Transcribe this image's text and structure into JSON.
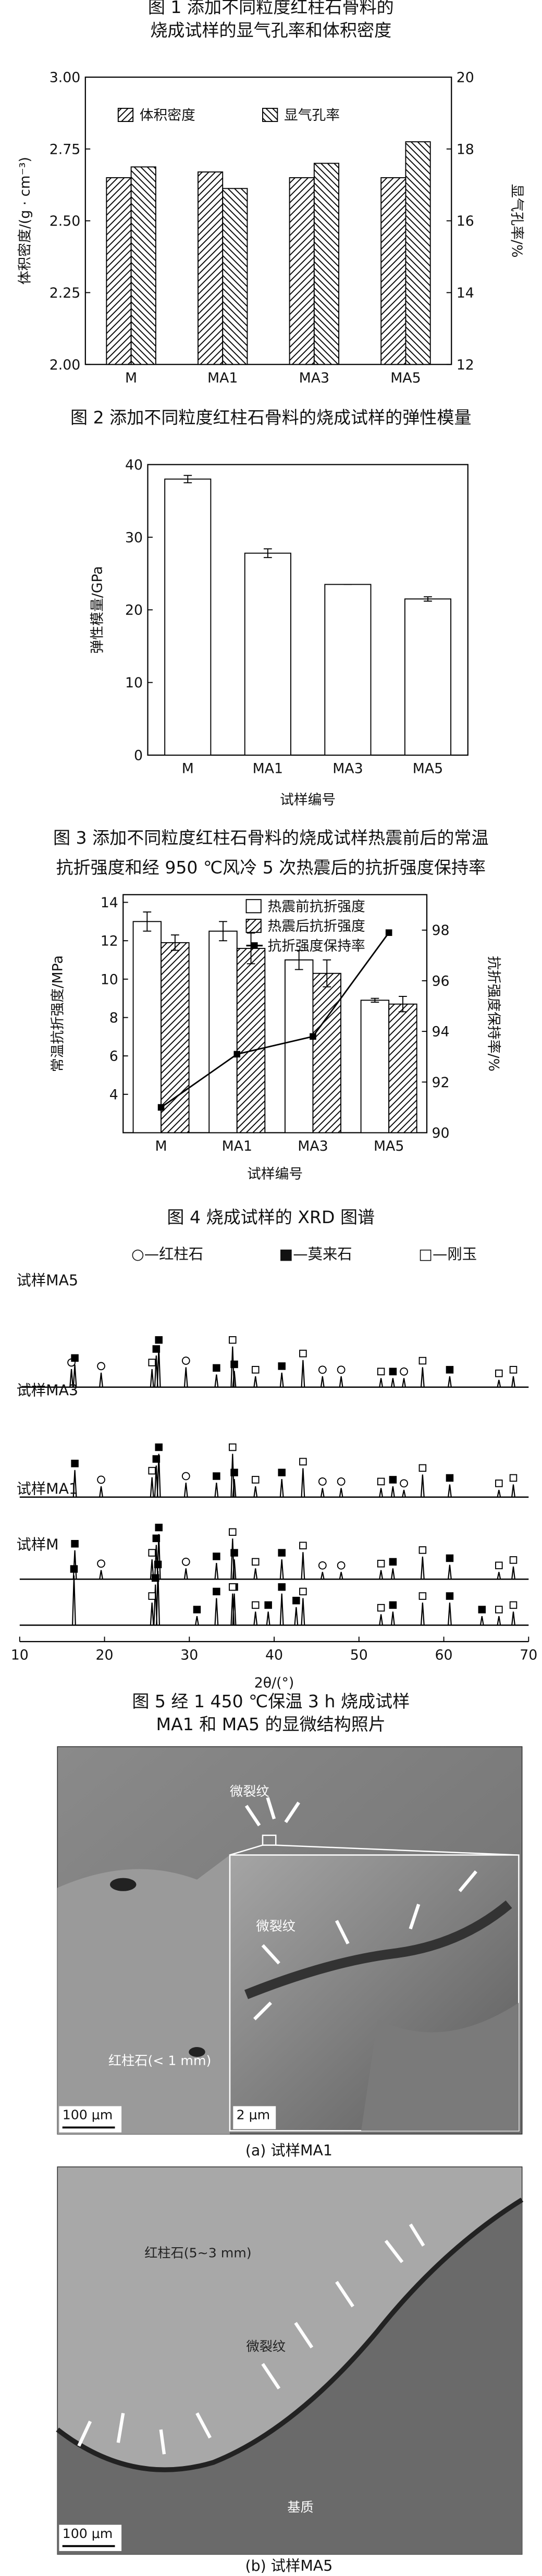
{
  "chart_data": [
    {
      "type": "bar",
      "title": [
        "图 1 添加不同粒度红柱石骨料的",
        "烧成试样的显气孔率和体积密度"
      ],
      "categories": [
        "M",
        "MA1",
        "MA3",
        "MA5"
      ],
      "series": [
        {
          "name": "体积密度",
          "pattern": "hatch-r",
          "values": [
            2.65,
            2.67,
            2.65,
            2.65
          ]
        },
        {
          "name": "显气孔率",
          "pattern": "hatch-l",
          "axis": "y2",
          "values": [
            17.5,
            16.9,
            17.6,
            18.2
          ]
        }
      ],
      "ylabel": "体积密度/(g · cm⁻³)",
      "y2label": "显气孔率/%",
      "ylim": [
        2,
        3
      ],
      "yticks": [
        {
          "value": 2,
          "label": "2.00"
        },
        {
          "value": 2.25,
          "label": "2.25"
        },
        {
          "value": 2.5,
          "label": "2.50"
        },
        {
          "value": 2.75,
          "label": "2.75"
        },
        {
          "value": 3,
          "label": "3.00"
        }
      ],
      "y2lim": [
        12,
        20
      ],
      "y2ticks": [
        12,
        14,
        16,
        18,
        20
      ],
      "legend": "top"
    },
    {
      "type": "bar",
      "title": [
        "图 2 添加不同粒度红柱石骨料的烧成试样的弹性模量"
      ],
      "categories": [
        "M",
        "MA1",
        "MA3",
        "MA5"
      ],
      "series": [
        {
          "name": "弹性模量",
          "pattern": "none",
          "values": [
            38,
            27.8,
            23.5,
            21.5
          ],
          "errors": [
            0.5,
            0.6,
            0,
            0.3
          ]
        }
      ],
      "ylabel": "弹性模量/GPa",
      "xlabel": "试样编号",
      "ylim": [
        0,
        40
      ],
      "yticks": [
        0,
        10,
        20,
        30,
        40
      ]
    },
    {
      "type": "bar",
      "title": [
        "图 3 添加不同粒度红柱石骨料的烧成试样热震前后的常温",
        "抗折强度和经 950 ℃风冷 5 次热震后的抗折强度保持率"
      ],
      "categories": [
        "M",
        "MA1",
        "MA3",
        "MA5"
      ],
      "series": [
        {
          "name": "热震前抗折强度",
          "pattern": "none",
          "values": [
            13.0,
            12.5,
            11.0,
            8.9
          ],
          "errors": [
            0.5,
            0.5,
            0.5,
            0.1
          ]
        },
        {
          "name": "热震后抗折强度",
          "pattern": "hatch-r",
          "values": [
            11.9,
            11.6,
            10.3,
            8.7
          ],
          "errors": [
            0.4,
            0.8,
            0.7,
            0.4
          ]
        },
        {
          "name": "抗折强度保持率",
          "kind": "line",
          "axis": "y2",
          "color": "#000000",
          "values": [
            91.0,
            93.1,
            93.8,
            97.9
          ]
        }
      ],
      "ylabel": "常温抗折强度/MPa",
      "y2label": "抗折强度保持率/%",
      "xlabel": "试样编号",
      "ylim": [
        2,
        14.4
      ],
      "yticks": [
        4,
        6,
        8,
        10,
        12,
        14
      ],
      "y2lim": [
        90,
        99.4
      ],
      "y2ticks": [
        90,
        92,
        94,
        96,
        98
      ],
      "legend": "top-right"
    },
    {
      "type": "spectrum",
      "title": [
        "图 4 烧成试样的 XRD 图谱"
      ],
      "legend": [
        "○—红柱石",
        "■—莫来石",
        "□—刚玉"
      ],
      "markers": [
        "circle-open",
        "square-filled",
        "square-open"
      ],
      "xlabel": "2θ/(°)",
      "xlim": [
        10,
        70
      ],
      "xticks": [
        10,
        20,
        30,
        40,
        50,
        60,
        70
      ],
      "samples": [
        {
          "name": "试样MA5",
          "groups": [
            {
              "x": [
                16.1,
                19.6,
                29.6,
                45.7,
                47.9,
                55.3
              ],
              "values": [
                20,
                16,
                22,
                12,
                12,
                10
              ]
            },
            {
              "x": [
                16.5,
                26.1,
                26.4,
                33.2,
                35.3,
                40.9,
                54.0,
                60.7
              ],
              "values": [
                25,
                35,
                45,
                14,
                18,
                16,
                10,
                12
              ]
            },
            {
              "x": [
                25.6,
                35.1,
                37.8,
                43.4,
                52.6,
                57.5,
                66.5,
                68.2
              ],
              "values": [
                20,
                45,
                12,
                30,
                10,
                22,
                8,
                12
              ]
            }
          ]
        },
        {
          "name": "试样MA3",
          "groups": [
            {
              "x": [
                19.6,
                29.6,
                45.7,
                47.9,
                55.3
              ],
              "values": [
                12,
                16,
                10,
                10,
                8
              ]
            },
            {
              "x": [
                16.5,
                26.1,
                26.4,
                33.2,
                35.3,
                40.9,
                54.0,
                60.7
              ],
              "values": [
                30,
                35,
                48,
                16,
                20,
                20,
                12,
                14
              ]
            },
            {
              "x": [
                25.6,
                35.1,
                37.8,
                43.4,
                52.6,
                57.5,
                66.5,
                68.2
              ],
              "values": [
                22,
                48,
                12,
                32,
                10,
                25,
                8,
                14
              ]
            }
          ]
        },
        {
          "name": "试样MA1",
          "groups": [
            {
              "x": [
                19.6,
                29.6,
                45.7,
                47.9
              ],
              "values": [
                10,
                12,
                8,
                8
              ]
            },
            {
              "x": [
                16.5,
                26.1,
                26.4,
                33.2,
                35.3,
                40.9,
                54.0,
                60.7
              ],
              "values": [
                32,
                38,
                50,
                18,
                22,
                22,
                12,
                16
              ]
            },
            {
              "x": [
                25.6,
                35.1,
                37.8,
                43.4,
                52.6,
                57.5,
                66.5,
                68.2
              ],
              "values": [
                22,
                45,
                12,
                30,
                10,
                25,
                8,
                14
              ]
            }
          ]
        },
        {
          "name": "试样M",
          "groups": [
            {
              "x": [],
              "values": []
            },
            {
              "x": [
                16.4,
                26.0,
                26.3,
                30.9,
                33.2,
                35.3,
                39.3,
                40.9,
                42.6,
                54.0,
                60.7,
                64.5
              ],
              "values": [
                55,
                45,
                60,
                10,
                30,
                35,
                15,
                35,
                20,
                15,
                25,
                10
              ]
            },
            {
              "x": [
                25.6,
                35.1,
                37.8,
                43.4,
                52.6,
                57.5,
                66.5,
                68.2
              ],
              "values": [
                25,
                35,
                15,
                30,
                12,
                25,
                10,
                15
              ]
            }
          ]
        }
      ]
    }
  ],
  "figure5": {
    "title": [
      "图 5 经 1 450 ℃保温 3 h 烧成试样",
      "MA1 和 MA5 的显微结构照片"
    ],
    "panels": [
      {
        "caption": "(a) 试样MA1",
        "labels": [
          "微裂纹",
          "红柱石(< 1 mm)",
          "100 μm",
          "微裂纹",
          "2 μm"
        ]
      },
      {
        "caption": "(b) 试样MA5",
        "labels": [
          "红柱石(5~3 mm)",
          "微裂纹",
          "基质",
          "100 μm"
        ]
      }
    ]
  }
}
